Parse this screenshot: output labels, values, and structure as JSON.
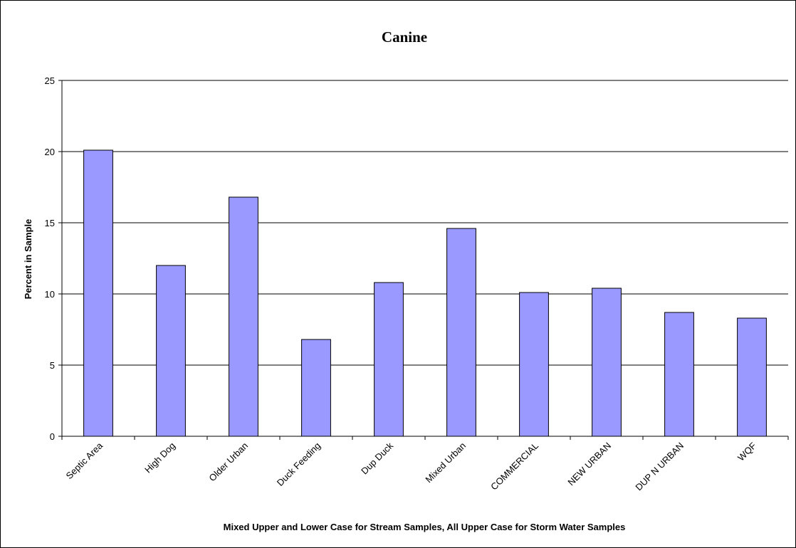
{
  "chart_data": {
    "type": "bar",
    "title": "Canine",
    "xlabel": "Mixed Upper and Lower Case for Stream Samples, All Upper Case for Storm Water Samples",
    "ylabel": "Percent in Sample",
    "categories": [
      "Septic Area",
      "High Dog",
      "Older Urban",
      "Duck Feeding",
      "Dup Duck",
      "Mixed Urban",
      "COMMERCIAL",
      "NEW URBAN",
      "DUP N URBAN",
      "WQF"
    ],
    "values": [
      20.1,
      12.0,
      16.8,
      6.8,
      10.8,
      14.6,
      10.1,
      10.4,
      8.7,
      8.3
    ],
    "ylim": [
      0,
      25
    ],
    "yticks": [
      0,
      5,
      10,
      15,
      20,
      25
    ],
    "grid": true,
    "colors": {
      "bar": "#9999FF",
      "bar_edge": "#000000",
      "grid": "#000000"
    }
  }
}
